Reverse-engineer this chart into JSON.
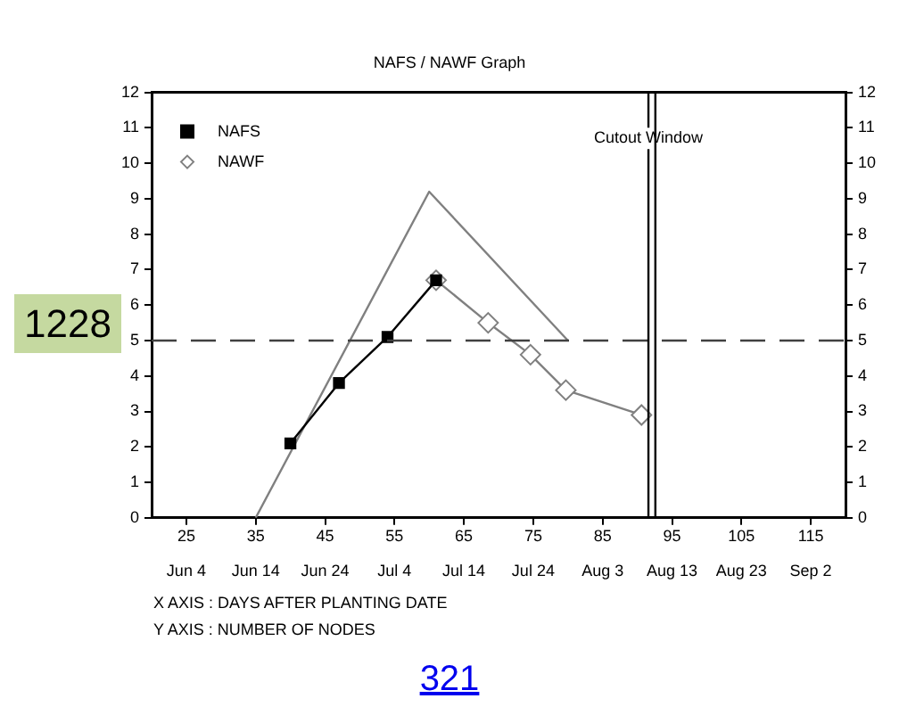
{
  "chart_data": {
    "type": "line",
    "title": "NAFS / NAWF Graph",
    "series": [
      {
        "name": "NAFS",
        "color": "#000000",
        "marker": "square",
        "x": [
          40,
          47,
          54,
          61
        ],
        "values": [
          2.1,
          3.8,
          5.1,
          6.7
        ]
      },
      {
        "name": "NAWF",
        "color": "#808080",
        "marker": "diamond",
        "x": [
          61,
          68.5,
          74.6,
          79.7,
          90.6
        ],
        "values": [
          6.7,
          5.5,
          4.6,
          3.6,
          2.9
        ]
      },
      {
        "color": "#808080",
        "marker": "none",
        "x": [
          35,
          60,
          80
        ],
        "values": [
          0,
          9.2,
          5
        ]
      }
    ],
    "xlim": [
      20,
      120
    ],
    "xticks": [
      25,
      35,
      45,
      55,
      65,
      75,
      85,
      95,
      105,
      115
    ],
    "x2lim": [
      "--05-30",
      "--09-07"
    ],
    "x2ticks": [
      {
        "value": "--06-04",
        "label": "Jun 4"
      },
      {
        "value": "--06-14",
        "label": "Jun 14"
      },
      {
        "value": "--06-24",
        "label": "Jun 24"
      },
      {
        "value": "--07-04",
        "label": "Jul 4"
      },
      {
        "value": "--07-14",
        "label": "Jul 14"
      },
      {
        "value": "--07-24",
        "label": "Jul 24"
      },
      {
        "value": "--08-03",
        "label": "Aug 3"
      },
      {
        "value": "--08-13",
        "label": "Aug 13"
      },
      {
        "value": "--08-23",
        "label": "Aug 23"
      },
      {
        "value": "--09-02",
        "label": "Sep 2"
      }
    ],
    "ylim": [
      0,
      12
    ],
    "yticks": [
      0,
      1,
      2,
      3,
      4,
      5,
      6,
      7,
      8,
      9,
      10,
      11,
      12
    ],
    "y2lim": [
      0,
      12
    ],
    "y2ticks": [
      0,
      1,
      2,
      3,
      4,
      5,
      6,
      7,
      8,
      9,
      10,
      11,
      12
    ],
    "ref_lines": [
      {
        "axis": "y",
        "value": 5,
        "color": "#404040",
        "line_style": "dashed"
      },
      {
        "axis": "x",
        "value": 91.6,
        "label": "Cutout Window",
        "color": "#000000"
      },
      {
        "axis": "x",
        "value": 92.6,
        "color": "#000000"
      }
    ],
    "grid": false,
    "legend": "top left",
    "line_style": "solid",
    "annotations": [
      "X AXIS : DAYS AFTER PLANTING DATE",
      "Y AXIS : NUMBER OF NODES",
      "1228",
      "321"
    ]
  }
}
